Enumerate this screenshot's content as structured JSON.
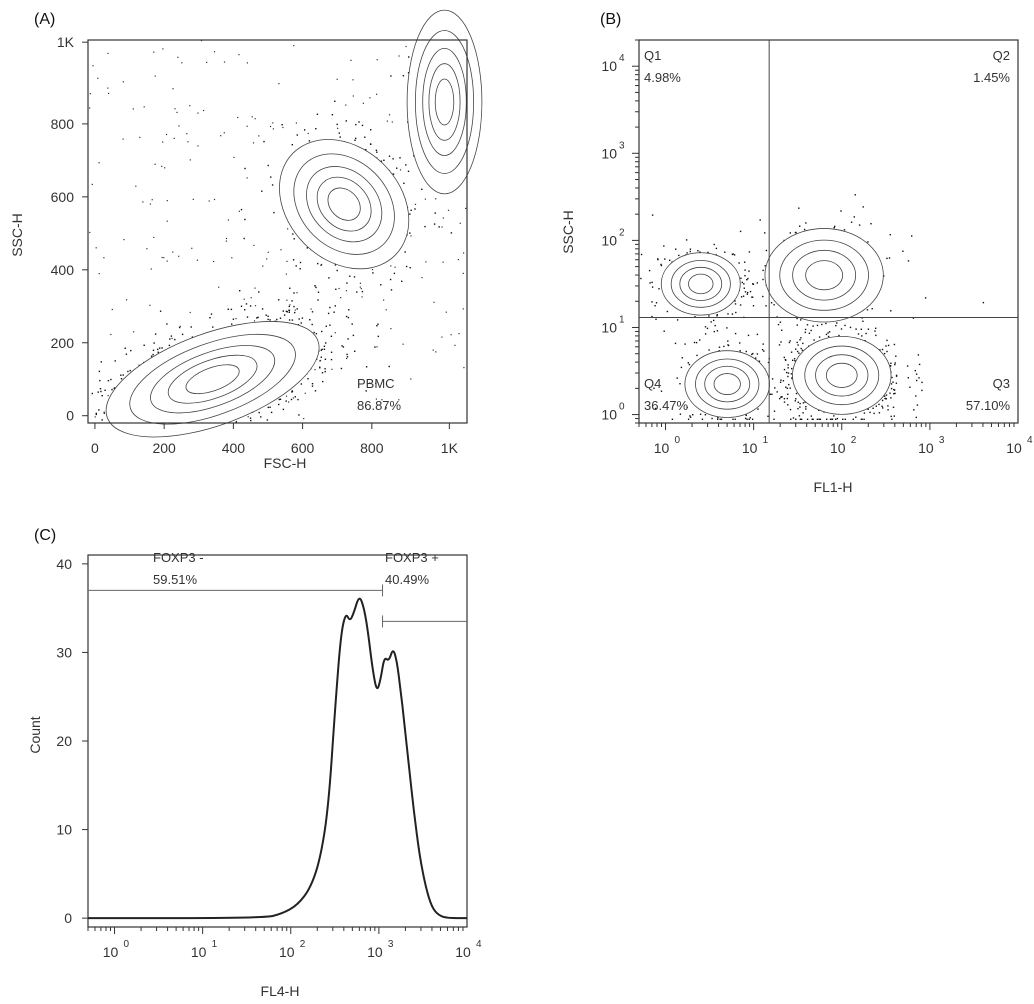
{
  "chart_data": [
    {
      "panel": "(A)",
      "type": "scatter",
      "xlabel": "FSC-H",
      "ylabel": "SSC-H",
      "xlim": [
        -20,
        1075
      ],
      "ylim": [
        -20,
        1030
      ],
      "x_ticks": [
        0,
        200,
        400,
        600,
        800,
        1024
      ],
      "x_tick_labels": [
        "0",
        "200",
        "400",
        "600",
        "800",
        "1K"
      ],
      "y_ticks": [
        0,
        200,
        400,
        600,
        800,
        1024
      ],
      "y_tick_labels": [
        "0",
        "200",
        "400",
        "600",
        "800",
        "1K"
      ],
      "gate": {
        "name": "PBMC",
        "percent": "86.87%"
      },
      "populations": [
        {
          "cx": 340,
          "cy": 100,
          "sx": 180,
          "sy": 70,
          "rot": 20,
          "n": 1300
        },
        {
          "cx": 720,
          "cy": 580,
          "sx": 90,
          "sy": 110,
          "rot": 45,
          "n": 380
        },
        {
          "cx": 1010,
          "cy": 860,
          "sx": 60,
          "sy": 140,
          "rot": 0,
          "n": 100
        }
      ]
    },
    {
      "panel": "(B)",
      "type": "scatter",
      "xlabel": "FL1-H",
      "ylabel": "SSC-H",
      "xscale": "log",
      "yscale": "log",
      "xlim": [
        0.5,
        10000
      ],
      "ylim": [
        0.8,
        20000
      ],
      "x_ticks": [
        1,
        10,
        100,
        1000,
        10000
      ],
      "x_tick_labels": [
        [
          "10",
          "0"
        ],
        [
          "10",
          "1"
        ],
        [
          "10",
          "2"
        ],
        [
          "10",
          "3"
        ],
        [
          "10",
          "4"
        ]
      ],
      "y_ticks": [
        1,
        10,
        100,
        1000,
        10000
      ],
      "y_tick_labels": [
        [
          "10",
          "0"
        ],
        [
          "10",
          "1"
        ],
        [
          "10",
          "2"
        ],
        [
          "10",
          "3"
        ],
        [
          "10",
          "4"
        ]
      ],
      "quadrant_lines": {
        "x": 15,
        "y": 13
      },
      "quadrants": [
        {
          "name": "Q1",
          "percent": "4.98%"
        },
        {
          "name": "Q2",
          "percent": "1.45%"
        },
        {
          "name": "Q3",
          "percent": "57.10%"
        },
        {
          "name": "Q4",
          "percent": "36.47%"
        }
      ],
      "populations": [
        {
          "lx": 0.4,
          "ly": 1.5,
          "s": 0.28,
          "n": 320
        },
        {
          "lx": 2.0,
          "ly": 0.45,
          "s": 0.35,
          "n": 620
        },
        {
          "lx": 0.7,
          "ly": 0.35,
          "s": 0.3,
          "n": 260
        },
        {
          "lx": 1.8,
          "ly": 1.6,
          "s": 0.42,
          "n": 220
        }
      ]
    },
    {
      "panel": "(C)",
      "type": "line",
      "xlabel": "FL4-H",
      "ylabel": "Count",
      "xscale": "log",
      "xlim": [
        0.5,
        10000
      ],
      "ylim": [
        -1,
        41
      ],
      "x_ticks": [
        1,
        10,
        100,
        1000,
        10000
      ],
      "x_tick_labels": [
        [
          "10",
          "0"
        ],
        [
          "10",
          "1"
        ],
        [
          "10",
          "2"
        ],
        [
          "10",
          "3"
        ],
        [
          "10",
          "4"
        ]
      ],
      "y_ticks": [
        0,
        10,
        20,
        30,
        40
      ],
      "y_tick_labels": [
        "0",
        "10",
        "20",
        "30",
        "40"
      ],
      "gates": [
        {
          "name": "FOXP3 -",
          "percent": "59.51%",
          "from": 0.5,
          "to": 1100,
          "y": 37
        },
        {
          "name": "FOXP3 +",
          "percent": "40.49%",
          "from": 1100,
          "to": 10000,
          "y": 33.5
        }
      ],
      "x": [
        0.5,
        50,
        80,
        120,
        170,
        220,
        270,
        320,
        370,
        420,
        470,
        520,
        600,
        680,
        760,
        850,
        950,
        1050,
        1150,
        1300,
        1450,
        1600,
        1750,
        1950,
        2200,
        2500,
        2900,
        3400,
        4000,
        4800,
        6000,
        10000
      ],
      "y": [
        0,
        0,
        0.5,
        1.5,
        3.5,
        7,
        13,
        24,
        32,
        34.5,
        33.5,
        34.5,
        36.5,
        35,
        32,
        28,
        25.5,
        27,
        29.5,
        29,
        30.5,
        29,
        26,
        22,
        17,
        12,
        7,
        3.5,
        1.2,
        0.3,
        0,
        0
      ]
    }
  ]
}
